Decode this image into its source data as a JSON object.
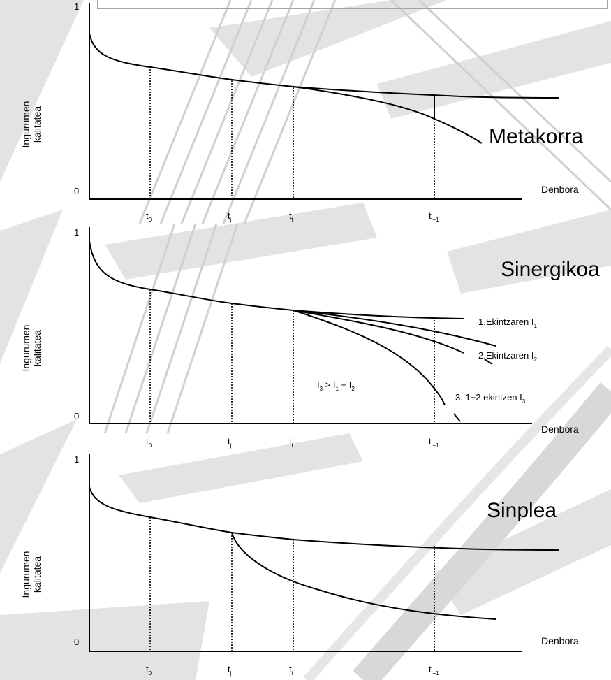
{
  "panels": [
    {
      "id": "metakorra",
      "title": "Metakorra",
      "y_label": [
        "Ingurumen",
        "kalitatea"
      ],
      "y_top": "1",
      "y_bottom": "0",
      "x_label": "Denbora",
      "ticks": [
        {
          "base": "t",
          "sub": "0"
        },
        {
          "base": "t",
          "sub": "j"
        },
        {
          "base": "t",
          "sub": "f"
        },
        {
          "base": "t",
          "sub": "i+1"
        }
      ]
    },
    {
      "id": "sinergikoa",
      "title": "Sinergikoa",
      "y_label": [
        "Ingurumen",
        "kalitatea"
      ],
      "y_top": "1",
      "y_bottom": "0",
      "x_label": "Denbora",
      "ticks": [
        {
          "base": "t",
          "sub": "0"
        },
        {
          "base": "t",
          "sub": "j"
        },
        {
          "base": "t",
          "sub": "f"
        },
        {
          "base": "t",
          "sub": "i+1"
        }
      ],
      "curve_labels": [
        {
          "text": "1.Ekintzaren I",
          "sub": "1"
        },
        {
          "text": "2.Ekintzaren I",
          "sub": "2"
        },
        {
          "text": "3. 1+2 ekintzen I",
          "sub": "3"
        }
      ],
      "formula": {
        "parts": [
          {
            "base": "I",
            "sub": "3"
          },
          {
            "base": " > I",
            "sub": "1"
          },
          {
            "base": " + I",
            "sub": "2"
          }
        ]
      }
    },
    {
      "id": "sinplea",
      "title": "Sinplea",
      "y_label": [
        "Ingurumen",
        "kalitatea"
      ],
      "y_top": "1",
      "y_bottom": "0",
      "x_label": "Denbora",
      "ticks": [
        {
          "base": "t",
          "sub": "0"
        },
        {
          "base": "t",
          "sub": "j"
        },
        {
          "base": "t",
          "sub": "f"
        },
        {
          "base": "t",
          "sub": "i+1"
        }
      ]
    }
  ],
  "colors": {
    "background": "#ffffff",
    "watermark": "#d9d9d9",
    "line": "#000000",
    "top_box_border": "#9aa7b0"
  }
}
